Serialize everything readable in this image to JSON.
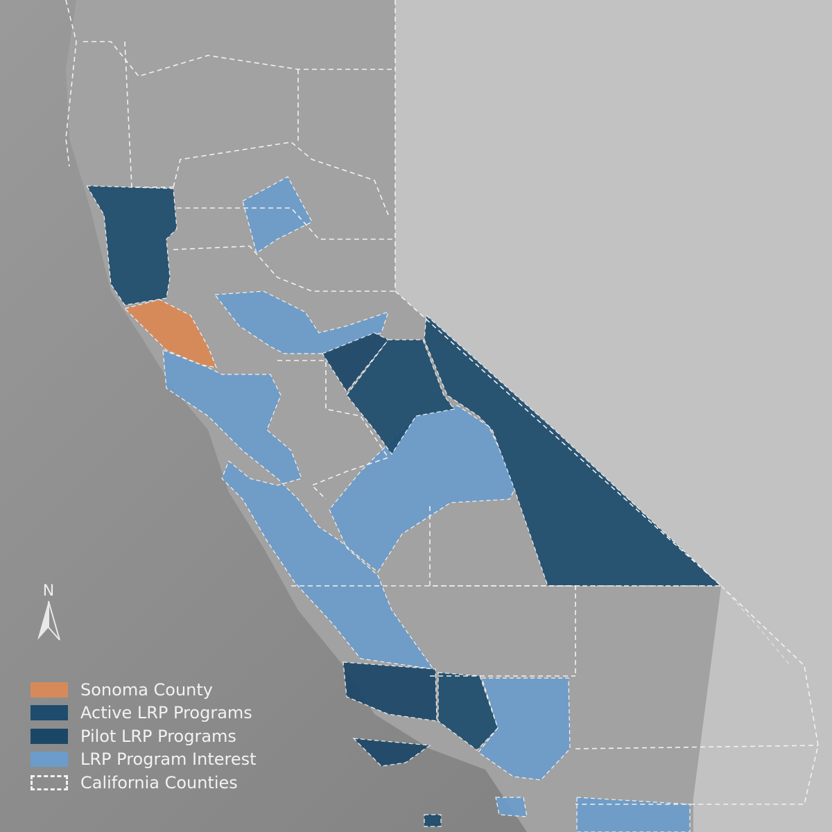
{
  "colors": {
    "sonoma": "#d68a5a",
    "active": "#1d4c6c",
    "pilot": "#1b4767",
    "interest": "#6b9cca",
    "county_border": "#f2f2f2",
    "land": "#a6a6a6",
    "ocean": "#8a8a8a",
    "nevada": "#c4c4c4"
  },
  "north_arrow": {
    "label": "N",
    "icon": "north-arrow-icon"
  },
  "legend": [
    {
      "label": "Sonoma County",
      "key": "sonoma"
    },
    {
      "label": "Active LRP Programs",
      "key": "active"
    },
    {
      "label": "Pilot LRP Programs",
      "key": "pilot"
    },
    {
      "label": "LRP Program Interest",
      "key": "interest"
    },
    {
      "label": "California Counties",
      "key": "dashed"
    }
  ]
}
